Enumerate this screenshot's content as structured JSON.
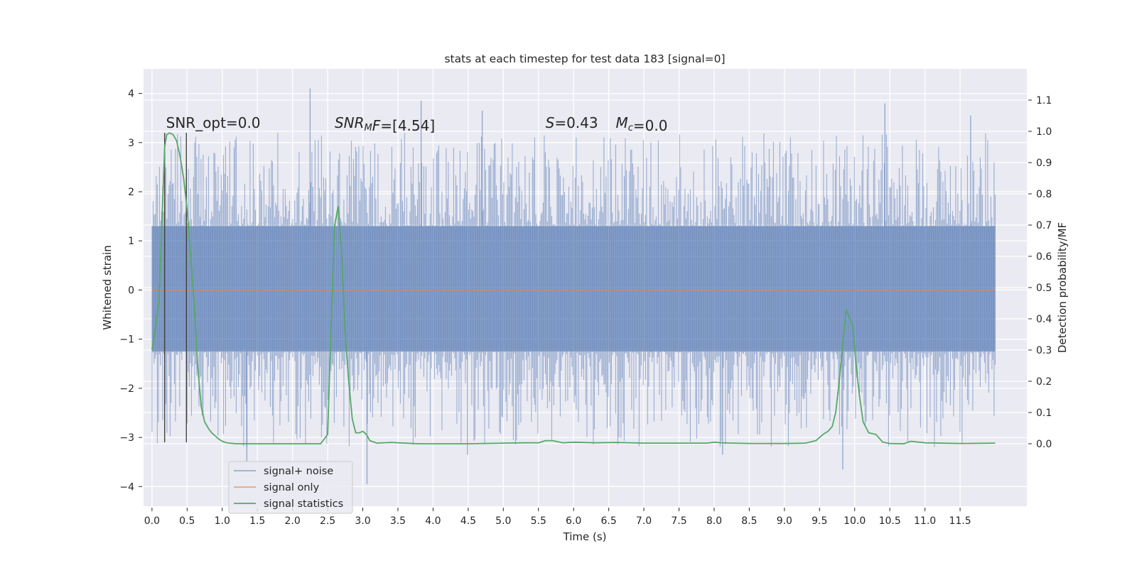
{
  "chart_data": {
    "type": "line",
    "title": "stats at each timestep for test data 183 [signal=0]",
    "xlabel": "Time (s)",
    "ylabel": "Whitened strain",
    "ylabel_right": "Detection probability/MF",
    "xlim": [
      -0.12,
      12.45
    ],
    "ylim": [
      -4.4,
      4.5
    ],
    "ylim_right": [
      -0.2,
      1.2
    ],
    "x_ticks": [
      0.0,
      0.5,
      1.0,
      1.5,
      2.0,
      2.5,
      3.0,
      3.5,
      4.0,
      4.5,
      5.0,
      5.5,
      6.0,
      6.5,
      7.0,
      7.5,
      8.0,
      8.5,
      9.0,
      9.5,
      10.0,
      10.5,
      11.0,
      11.5
    ],
    "x_tick_labels": [
      "0.0",
      "0.5",
      "1.0",
      "1.5",
      "2.0",
      "2.5",
      "3.0",
      "3.5",
      "4.0",
      "4.5",
      "5.0",
      "5.5",
      "6.0",
      "6.5",
      "7.0",
      "7.5",
      "8.0",
      "8.5",
      "9.0",
      "9.5",
      "10.0",
      "10.5",
      "11.0",
      "11.5"
    ],
    "y_ticks": [
      -4,
      -3,
      -2,
      -1,
      0,
      1,
      2,
      3,
      4
    ],
    "y_tick_labels": [
      "−4",
      "−3",
      "−2",
      "−1",
      "0",
      "1",
      "2",
      "3",
      "4"
    ],
    "y_right_ticks": [
      0.0,
      0.1,
      0.2,
      0.3,
      0.4,
      0.5,
      0.6,
      0.7,
      0.8,
      0.9,
      1.0,
      1.1
    ],
    "y_right_tick_labels": [
      "0.0",
      "0.1",
      "0.2",
      "0.3",
      "0.4",
      "0.5",
      "0.6",
      "0.7",
      "0.8",
      "0.9",
      "1.0",
      "1.1"
    ],
    "grid": true,
    "legend_position": "lower-left",
    "series": [
      {
        "name": "signal+ noise",
        "axis": "left",
        "color": "#4c72b0",
        "style": "noise band",
        "x_range": [
          0.0,
          12.0
        ],
        "approx_envelope": {
          "core": [
            -1.25,
            1.3
          ],
          "typical_peaks": [
            -2.6,
            2.6
          ]
        },
        "notable_spikes": [
          {
            "x": 2.25,
            "y": 4.1
          },
          {
            "x": 3.83,
            "y": 3.85
          },
          {
            "x": 4.7,
            "y": 3.65
          },
          {
            "x": 10.43,
            "y": 3.8
          },
          {
            "x": 11.65,
            "y": 3.55
          },
          {
            "x": 3.06,
            "y": -3.95
          },
          {
            "x": 9.83,
            "y": -3.65
          },
          {
            "x": 1.35,
            "y": -3.5
          },
          {
            "x": 8.12,
            "y": -3.35
          },
          {
            "x": 4.49,
            "y": -3.35
          }
        ]
      },
      {
        "name": "signal only",
        "axis": "left",
        "color": "#dd8452",
        "x": [
          0.0,
          12.0
        ],
        "y": [
          0.0,
          0.0
        ]
      },
      {
        "name": "signal statistics",
        "axis": "right",
        "color": "#55a868",
        "x": [
          0.0,
          0.05,
          0.1,
          0.14,
          0.18,
          0.21,
          0.25,
          0.3,
          0.35,
          0.4,
          0.45,
          0.5,
          0.55,
          0.6,
          0.65,
          0.7,
          0.75,
          0.8,
          0.85,
          0.9,
          0.95,
          1.0,
          1.05,
          1.1,
          1.2,
          1.5,
          2.0,
          2.4,
          2.5,
          2.55,
          2.6,
          2.65,
          2.7,
          2.75,
          2.8,
          2.85,
          2.9,
          2.95,
          3.0,
          3.05,
          3.1,
          3.2,
          3.4,
          3.8,
          4.5,
          5.0,
          5.3,
          5.5,
          5.6,
          5.7,
          5.85,
          6.0,
          6.3,
          6.6,
          7.0,
          7.5,
          7.9,
          8.0,
          8.1,
          8.5,
          9.0,
          9.3,
          9.45,
          9.55,
          9.62,
          9.68,
          9.73,
          9.78,
          9.83,
          9.88,
          9.93,
          9.97,
          10.02,
          10.07,
          10.12,
          10.2,
          10.3,
          10.4,
          10.5,
          10.7,
          10.8,
          11.0,
          11.5,
          12.0
        ],
        "y": [
          0.3,
          0.37,
          0.46,
          0.7,
          0.95,
          0.99,
          0.995,
          0.99,
          0.97,
          0.92,
          0.85,
          0.75,
          0.6,
          0.45,
          0.25,
          0.12,
          0.07,
          0.05,
          0.035,
          0.025,
          0.015,
          0.008,
          0.004,
          0.002,
          0.0,
          0.0,
          0.0,
          0.0,
          0.03,
          0.38,
          0.7,
          0.76,
          0.6,
          0.35,
          0.2,
          0.08,
          0.035,
          0.035,
          0.04,
          0.03,
          0.01,
          0.002,
          0.004,
          0.0,
          0.0,
          0.002,
          0.003,
          0.003,
          0.01,
          0.01,
          0.003,
          0.005,
          0.003,
          0.004,
          0.002,
          0.002,
          0.002,
          0.005,
          0.003,
          0.001,
          0.001,
          0.002,
          0.01,
          0.03,
          0.04,
          0.055,
          0.1,
          0.2,
          0.32,
          0.43,
          0.4,
          0.38,
          0.25,
          0.15,
          0.07,
          0.035,
          0.03,
          0.005,
          0.001,
          0.0,
          0.008,
          0.003,
          0.001,
          0.002
        ]
      }
    ],
    "vertical_markers": [
      {
        "x": 0.18,
        "y_range": [
          -3.1,
          3.2
        ],
        "color": "#404040"
      },
      {
        "x": 0.49,
        "y_range": [
          -3.1,
          3.2
        ],
        "color": "#404040"
      }
    ],
    "annotations": [
      {
        "id": "snr_opt",
        "parts": [
          {
            "t": "SNR_opt=0.0",
            "italic": false
          }
        ],
        "x": 0.2,
        "y": 3.3
      },
      {
        "id": "snr_mf",
        "parts": [
          {
            "t": "SNR",
            "italic": true
          },
          {
            "t": "M",
            "italic": true,
            "sub": true
          },
          {
            "t": "F",
            "italic": true
          },
          {
            "t": "=[4.54]",
            "italic": false
          }
        ],
        "x": 2.6,
        "y": 3.3
      },
      {
        "id": "s_val",
        "parts": [
          {
            "t": "S",
            "italic": true
          },
          {
            "t": "=0.43",
            "italic": false
          }
        ],
        "x": 5.6,
        "y": 3.3
      },
      {
        "id": "mc_val",
        "parts": [
          {
            "t": "M",
            "italic": true
          },
          {
            "t": "c",
            "italic": true,
            "sub": true
          },
          {
            "t": "=0.0",
            "italic": false
          }
        ],
        "x": 6.6,
        "y": 3.3
      }
    ]
  }
}
